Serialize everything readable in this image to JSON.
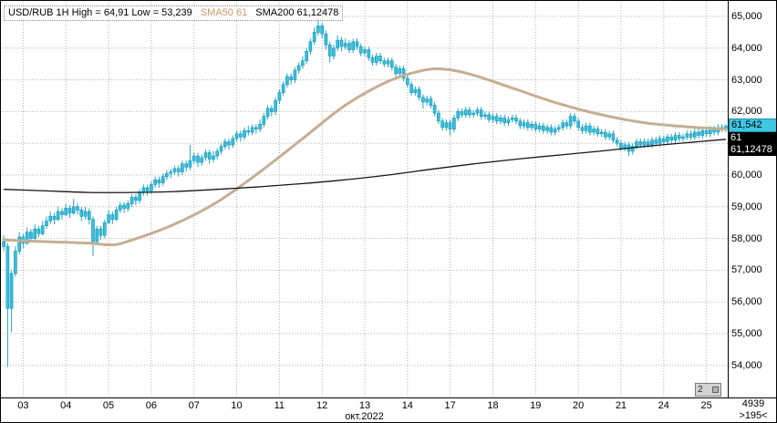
{
  "header": {
    "title_left": "USD/RUB 1H High = 64,91 Low = 53,239",
    "sma50_label": "SMA50 61",
    "sma200_label": "SMA200 61,12478"
  },
  "price_scale": {
    "labels": [
      {
        "text": "65,000",
        "value": 65
      },
      {
        "text": "64,000",
        "value": 64
      },
      {
        "text": "63,000",
        "value": 63
      },
      {
        "text": "62,000",
        "value": 62
      },
      {
        "text": "61,000",
        "value": 61
      },
      {
        "text": "60,000",
        "value": 60
      },
      {
        "text": "59,000",
        "value": 59
      },
      {
        "text": "58,000",
        "value": 58
      },
      {
        "text": "57,000",
        "value": 57
      },
      {
        "text": "56,000",
        "value": 56
      },
      {
        "text": "55,000",
        "value": 55
      },
      {
        "text": "54,000",
        "value": 54
      }
    ],
    "tags": [
      {
        "text": "61,542",
        "value": 61.542,
        "type": "price"
      },
      {
        "text": "61",
        "type": "ma"
      },
      {
        "text": "61,12478",
        "type": "ma"
      }
    ]
  },
  "time_scale": {
    "day_labels": [
      "03",
      "04",
      "05",
      "06",
      "07",
      "10",
      "11",
      "12",
      "13",
      "14",
      "17",
      "18",
      "19",
      "20",
      "21",
      "24",
      "25"
    ],
    "month_label": "окт.2022"
  },
  "footer": {
    "bars_total": "4939",
    "bars_visible": ">195<"
  },
  "misc": {
    "mini_button_label": "2"
  },
  "chart_data": {
    "type": "candlestick",
    "title": "USD/RUB 1H",
    "instrument": "USD/RUB",
    "timeframe": "1H",
    "high": 64.91,
    "low": 53.239,
    "last": 61.542,
    "sma50_last": 61.0,
    "sma200_last": 61.12478,
    "ylim": [
      53.0,
      65.45
    ],
    "grid": true,
    "candles_per_day": 11,
    "candles": [
      [
        57.9,
        58.1,
        57.6,
        57.75
      ],
      [
        57.75,
        57.85,
        53.95,
        55.8
      ],
      [
        55.8,
        57.0,
        55.05,
        56.9
      ],
      [
        56.9,
        57.75,
        56.8,
        57.6
      ],
      [
        57.6,
        58.2,
        57.5,
        58.05
      ],
      [
        58.05,
        58.15,
        57.7,
        57.85
      ],
      [
        57.85,
        58.35,
        57.8,
        58.2
      ],
      [
        58.2,
        58.3,
        57.9,
        58.0
      ],
      [
        58.0,
        58.45,
        57.95,
        58.3
      ],
      [
        58.3,
        58.4,
        58.05,
        58.15
      ],
      [
        58.15,
        58.55,
        58.1,
        58.4
      ],
      [
        58.4,
        58.7,
        58.3,
        58.55
      ],
      [
        58.55,
        58.85,
        58.45,
        58.7
      ],
      [
        58.7,
        58.8,
        58.45,
        58.6
      ],
      [
        58.6,
        59.0,
        58.55,
        58.85
      ],
      [
        58.85,
        58.95,
        58.6,
        58.75
      ],
      [
        58.75,
        59.1,
        58.7,
        58.95
      ],
      [
        58.95,
        59.05,
        58.65,
        58.8
      ],
      [
        58.8,
        59.25,
        58.75,
        59.0
      ],
      [
        59.0,
        59.1,
        58.75,
        58.9
      ],
      [
        58.9,
        59.0,
        58.55,
        58.7
      ],
      [
        58.7,
        59.0,
        58.6,
        58.85
      ],
      [
        58.85,
        58.95,
        58.45,
        58.6
      ],
      [
        58.6,
        58.7,
        57.45,
        57.9
      ],
      [
        57.9,
        58.4,
        57.8,
        58.3
      ],
      [
        58.3,
        58.4,
        57.95,
        58.1
      ],
      [
        58.1,
        58.6,
        58.0,
        58.5
      ],
      [
        58.5,
        58.9,
        58.45,
        58.75
      ],
      [
        58.75,
        58.85,
        58.45,
        58.6
      ],
      [
        58.6,
        59.0,
        58.55,
        58.9
      ],
      [
        58.9,
        59.15,
        58.8,
        59.05
      ],
      [
        59.05,
        59.15,
        58.8,
        58.95
      ],
      [
        58.95,
        59.2,
        58.85,
        59.1
      ],
      [
        59.1,
        59.4,
        59.0,
        59.3
      ],
      [
        59.3,
        59.4,
        59.05,
        59.2
      ],
      [
        59.2,
        59.55,
        59.1,
        59.45
      ],
      [
        59.45,
        59.7,
        59.35,
        59.6
      ],
      [
        59.6,
        59.7,
        59.35,
        59.5
      ],
      [
        59.5,
        59.8,
        59.4,
        59.7
      ],
      [
        59.7,
        59.95,
        59.6,
        59.85
      ],
      [
        59.85,
        59.95,
        59.6,
        59.75
      ],
      [
        59.75,
        60.05,
        59.65,
        59.95
      ],
      [
        59.95,
        60.15,
        59.85,
        60.05
      ],
      [
        60.05,
        60.2,
        59.9,
        60.1
      ],
      [
        60.1,
        60.3,
        60.0,
        60.2
      ],
      [
        60.2,
        60.3,
        59.95,
        60.1
      ],
      [
        60.1,
        60.45,
        60.0,
        60.35
      ],
      [
        60.35,
        60.45,
        60.1,
        60.25
      ],
      [
        60.25,
        60.95,
        60.15,
        60.45
      ],
      [
        60.45,
        60.7,
        60.35,
        60.6
      ],
      [
        60.6,
        60.7,
        60.25,
        60.4
      ],
      [
        60.4,
        60.65,
        60.3,
        60.55
      ],
      [
        60.55,
        60.8,
        60.45,
        60.7
      ],
      [
        60.7,
        60.8,
        60.35,
        60.5
      ],
      [
        60.5,
        60.75,
        60.4,
        60.6
      ],
      [
        60.6,
        60.85,
        60.5,
        60.75
      ],
      [
        60.75,
        61.0,
        60.65,
        60.9
      ],
      [
        60.9,
        61.15,
        60.8,
        61.05
      ],
      [
        61.05,
        61.15,
        60.8,
        60.95
      ],
      [
        60.95,
        61.25,
        60.85,
        61.15
      ],
      [
        61.15,
        61.4,
        61.05,
        61.3
      ],
      [
        61.3,
        61.4,
        61.05,
        61.2
      ],
      [
        61.2,
        61.5,
        61.1,
        61.4
      ],
      [
        61.4,
        61.55,
        61.25,
        61.35
      ],
      [
        61.35,
        61.6,
        61.25,
        61.5
      ],
      [
        61.5,
        61.6,
        61.3,
        61.45
      ],
      [
        61.45,
        61.75,
        61.35,
        61.6
      ],
      [
        61.6,
        61.95,
        61.5,
        61.85
      ],
      [
        61.85,
        62.2,
        61.75,
        62.1
      ],
      [
        62.1,
        62.2,
        61.85,
        62.0
      ],
      [
        62.0,
        62.45,
        61.9,
        62.35
      ],
      [
        62.35,
        62.7,
        62.25,
        62.6
      ],
      [
        62.6,
        62.95,
        62.5,
        62.85
      ],
      [
        62.85,
        63.2,
        62.75,
        63.1
      ],
      [
        63.1,
        63.2,
        62.85,
        63.0
      ],
      [
        63.0,
        63.4,
        62.9,
        63.3
      ],
      [
        63.3,
        63.55,
        63.2,
        63.45
      ],
      [
        63.45,
        63.75,
        63.35,
        63.6
      ],
      [
        63.6,
        64.0,
        63.5,
        63.9
      ],
      [
        63.9,
        64.3,
        63.8,
        64.2
      ],
      [
        64.2,
        64.65,
        64.1,
        64.5
      ],
      [
        64.5,
        64.91,
        64.4,
        64.7
      ],
      [
        64.7,
        64.8,
        64.3,
        64.45
      ],
      [
        64.45,
        64.55,
        63.95,
        64.1
      ],
      [
        64.1,
        64.2,
        63.55,
        63.75
      ],
      [
        63.75,
        64.1,
        63.65,
        64.0
      ],
      [
        64.0,
        64.4,
        63.9,
        64.25
      ],
      [
        64.25,
        64.35,
        63.9,
        64.05
      ],
      [
        64.05,
        64.3,
        63.95,
        64.15
      ],
      [
        64.15,
        64.25,
        63.85,
        63.95
      ],
      [
        63.95,
        64.3,
        63.85,
        64.2
      ],
      [
        64.2,
        64.3,
        63.95,
        64.05
      ],
      [
        64.05,
        64.15,
        63.75,
        63.85
      ],
      [
        63.85,
        64.05,
        63.75,
        63.95
      ],
      [
        63.95,
        64.05,
        63.6,
        63.7
      ],
      [
        63.7,
        63.8,
        63.45,
        63.55
      ],
      [
        63.55,
        63.85,
        63.45,
        63.75
      ],
      [
        63.75,
        63.85,
        63.5,
        63.6
      ],
      [
        63.6,
        63.7,
        63.4,
        63.5
      ],
      [
        63.5,
        63.7,
        63.4,
        63.6
      ],
      [
        63.6,
        63.7,
        63.3,
        63.4
      ],
      [
        63.4,
        63.5,
        63.1,
        63.2
      ],
      [
        63.2,
        63.45,
        63.1,
        63.35
      ],
      [
        63.35,
        63.45,
        62.95,
        63.05
      ],
      [
        63.05,
        63.15,
        62.75,
        62.85
      ],
      [
        62.85,
        62.95,
        62.5,
        62.6
      ],
      [
        62.6,
        62.8,
        62.5,
        62.7
      ],
      [
        62.7,
        62.8,
        62.35,
        62.45
      ],
      [
        62.45,
        62.55,
        62.1,
        62.3
      ],
      [
        62.3,
        62.5,
        62.2,
        62.4
      ],
      [
        62.4,
        62.5,
        62.1,
        62.2
      ],
      [
        62.2,
        62.3,
        61.85,
        61.95
      ],
      [
        61.95,
        62.05,
        61.6,
        61.7
      ],
      [
        61.7,
        61.8,
        61.4,
        61.5
      ],
      [
        61.5,
        61.75,
        61.4,
        61.65
      ],
      [
        61.65,
        61.75,
        61.25,
        61.45
      ],
      [
        61.45,
        61.9,
        61.35,
        61.8
      ],
      [
        61.8,
        62.1,
        61.7,
        62.0
      ],
      [
        62.0,
        62.1,
        61.8,
        61.9
      ],
      [
        61.9,
        62.15,
        61.8,
        62.05
      ],
      [
        62.05,
        62.15,
        61.8,
        61.9
      ],
      [
        61.9,
        62.05,
        61.8,
        61.95
      ],
      [
        61.95,
        62.15,
        61.85,
        62.05
      ],
      [
        62.05,
        62.15,
        61.75,
        61.85
      ],
      [
        61.85,
        62.0,
        61.75,
        61.9
      ],
      [
        61.9,
        62.0,
        61.65,
        61.75
      ],
      [
        61.75,
        61.95,
        61.65,
        61.85
      ],
      [
        61.85,
        61.95,
        61.6,
        61.7
      ],
      [
        61.7,
        61.9,
        61.6,
        61.8
      ],
      [
        61.8,
        61.9,
        61.55,
        61.65
      ],
      [
        61.65,
        61.85,
        61.55,
        61.75
      ],
      [
        61.75,
        61.9,
        61.65,
        61.8
      ],
      [
        61.8,
        61.9,
        61.6,
        61.7
      ],
      [
        61.7,
        61.8,
        61.45,
        61.55
      ],
      [
        61.55,
        61.75,
        61.45,
        61.65
      ],
      [
        61.65,
        61.75,
        61.4,
        61.5
      ],
      [
        61.5,
        61.7,
        61.4,
        61.6
      ],
      [
        61.6,
        61.7,
        61.35,
        61.45
      ],
      [
        61.45,
        61.65,
        61.35,
        61.55
      ],
      [
        61.55,
        61.65,
        61.3,
        61.4
      ],
      [
        61.4,
        61.6,
        61.3,
        61.5
      ],
      [
        61.5,
        61.6,
        61.25,
        61.35
      ],
      [
        61.35,
        61.55,
        61.25,
        61.45
      ],
      [
        61.45,
        61.6,
        61.35,
        61.5
      ],
      [
        61.5,
        61.75,
        61.4,
        61.65
      ],
      [
        61.65,
        61.75,
        61.45,
        61.55
      ],
      [
        61.55,
        61.95,
        61.45,
        61.85
      ],
      [
        61.85,
        61.95,
        61.6,
        61.7
      ],
      [
        61.7,
        61.8,
        61.4,
        61.5
      ],
      [
        61.5,
        61.6,
        61.3,
        61.4
      ],
      [
        61.4,
        61.65,
        61.3,
        61.55
      ],
      [
        61.55,
        61.65,
        61.25,
        61.35
      ],
      [
        61.35,
        61.55,
        61.25,
        61.45
      ],
      [
        61.45,
        61.55,
        61.2,
        61.3
      ],
      [
        61.3,
        61.45,
        61.2,
        61.35
      ],
      [
        61.35,
        61.45,
        61.1,
        61.2
      ],
      [
        61.2,
        61.4,
        61.1,
        61.3
      ],
      [
        61.3,
        61.4,
        61.0,
        61.1
      ],
      [
        61.1,
        61.2,
        60.9,
        61.0
      ],
      [
        61.0,
        61.1,
        60.75,
        60.85
      ],
      [
        60.85,
        61.05,
        60.75,
        60.95
      ],
      [
        60.95,
        61.05,
        60.6,
        60.75
      ],
      [
        60.75,
        61.0,
        60.65,
        60.9
      ],
      [
        60.9,
        61.15,
        60.8,
        61.05
      ],
      [
        61.05,
        61.15,
        60.85,
        60.95
      ],
      [
        60.95,
        61.15,
        60.85,
        61.05
      ],
      [
        61.05,
        61.15,
        60.85,
        60.95
      ],
      [
        60.95,
        61.2,
        60.85,
        61.1
      ],
      [
        61.1,
        61.2,
        60.9,
        61.0
      ],
      [
        61.0,
        61.25,
        60.9,
        61.15
      ],
      [
        61.15,
        61.25,
        60.95,
        61.05
      ],
      [
        61.05,
        61.3,
        60.95,
        61.2
      ],
      [
        61.2,
        61.3,
        61.0,
        61.1
      ],
      [
        61.1,
        61.35,
        61.0,
        61.25
      ],
      [
        61.25,
        61.35,
        61.05,
        61.15
      ],
      [
        61.15,
        61.3,
        61.05,
        61.2
      ],
      [
        61.2,
        61.4,
        61.1,
        61.3
      ],
      [
        61.3,
        61.4,
        61.1,
        61.2
      ],
      [
        61.2,
        61.45,
        61.1,
        61.35
      ],
      [
        61.35,
        61.45,
        61.15,
        61.25
      ],
      [
        61.25,
        61.5,
        61.15,
        61.4
      ],
      [
        61.4,
        61.5,
        61.2,
        61.3
      ],
      [
        61.3,
        61.55,
        61.2,
        61.45
      ],
      [
        61.45,
        61.55,
        61.25,
        61.35
      ],
      [
        61.35,
        61.6,
        61.25,
        61.5
      ],
      [
        61.5,
        61.6,
        61.35,
        61.45
      ],
      [
        61.45,
        61.6,
        61.35,
        61.542
      ]
    ],
    "sma50_points": [
      [
        0,
        57.95
      ],
      [
        11,
        57.9
      ],
      [
        22,
        57.85
      ],
      [
        28,
        57.8
      ],
      [
        33,
        57.95
      ],
      [
        44,
        58.45
      ],
      [
        55,
        59.15
      ],
      [
        66,
        60.1
      ],
      [
        77,
        61.15
      ],
      [
        88,
        62.2
      ],
      [
        99,
        62.95
      ],
      [
        108,
        63.3
      ],
      [
        114,
        63.33
      ],
      [
        121,
        63.15
      ],
      [
        132,
        62.7
      ],
      [
        143,
        62.25
      ],
      [
        154,
        61.9
      ],
      [
        165,
        61.65
      ],
      [
        176,
        61.52
      ],
      [
        186,
        61.45
      ]
    ],
    "sma200_points": [
      [
        0,
        59.55
      ],
      [
        11,
        59.5
      ],
      [
        22,
        59.45
      ],
      [
        33,
        59.45
      ],
      [
        44,
        59.48
      ],
      [
        55,
        59.55
      ],
      [
        66,
        59.63
      ],
      [
        77,
        59.73
      ],
      [
        88,
        59.85
      ],
      [
        99,
        60.0
      ],
      [
        110,
        60.18
      ],
      [
        121,
        60.35
      ],
      [
        132,
        60.5
      ],
      [
        143,
        60.63
      ],
      [
        154,
        60.76
      ],
      [
        165,
        60.9
      ],
      [
        176,
        61.02
      ],
      [
        186,
        61.125
      ]
    ]
  }
}
